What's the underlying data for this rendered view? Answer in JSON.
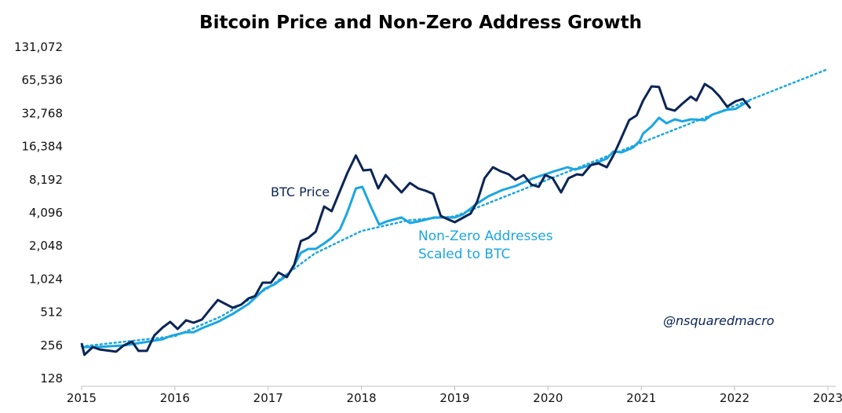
{
  "chart_data": {
    "type": "line",
    "title": "Bitcoin Price and Non-Zero Address Growth",
    "xlabel": "",
    "ylabel": "",
    "xlim": [
      2015,
      2023
    ],
    "ylim": [
      128,
      131072
    ],
    "yscale": "log2",
    "grid": false,
    "x_ticks": [
      "2015",
      "2016",
      "2017",
      "2018",
      "2019",
      "2020",
      "2021",
      "2022",
      "2023"
    ],
    "y_ticks": [
      "128",
      "256",
      "512",
      "1,024",
      "2,048",
      "4,096",
      "8,192",
      "16,384",
      "32,768",
      "65,536",
      "131,072"
    ],
    "y_tick_values": [
      128,
      256,
      512,
      1024,
      2048,
      4096,
      8192,
      16384,
      32768,
      65536,
      131072
    ],
    "colors": {
      "btc": "#0b2556",
      "nonzero": "#1ba6e2",
      "trend": "#1ba6e2",
      "axis": "#bfbfbf"
    },
    "series": [
      {
        "name": "BTC Price",
        "label": "BTC Price",
        "points": [
          [
            2015.0,
            268
          ],
          [
            2015.03,
            210
          ],
          [
            2015.12,
            247
          ],
          [
            2015.19,
            235
          ],
          [
            2015.37,
            224
          ],
          [
            2015.45,
            255
          ],
          [
            2015.54,
            277
          ],
          [
            2015.61,
            228
          ],
          [
            2015.7,
            228
          ],
          [
            2015.78,
            315
          ],
          [
            2015.87,
            372
          ],
          [
            2015.95,
            418
          ],
          [
            2016.03,
            360
          ],
          [
            2016.12,
            432
          ],
          [
            2016.2,
            411
          ],
          [
            2016.29,
            439
          ],
          [
            2016.37,
            534
          ],
          [
            2016.46,
            660
          ],
          [
            2016.54,
            609
          ],
          [
            2016.62,
            562
          ],
          [
            2016.71,
            599
          ],
          [
            2016.79,
            684
          ],
          [
            2016.86,
            718
          ],
          [
            2016.94,
            950
          ],
          [
            2017.03,
            950
          ],
          [
            2017.11,
            1175
          ],
          [
            2017.2,
            1065
          ],
          [
            2017.28,
            1386
          ],
          [
            2017.35,
            2267
          ],
          [
            2017.43,
            2423
          ],
          [
            2017.51,
            2761
          ],
          [
            2017.6,
            4673
          ],
          [
            2017.68,
            4232
          ],
          [
            2017.77,
            6492
          ],
          [
            2017.85,
            9470
          ],
          [
            2017.94,
            13590
          ],
          [
            2018.02,
            9945
          ],
          [
            2018.1,
            10100
          ],
          [
            2018.18,
            6816
          ],
          [
            2018.26,
            9011
          ],
          [
            2018.35,
            7398
          ],
          [
            2018.43,
            6279
          ],
          [
            2018.52,
            7643
          ],
          [
            2018.61,
            6816
          ],
          [
            2018.69,
            6492
          ],
          [
            2018.77,
            6075
          ],
          [
            2018.85,
            3836
          ],
          [
            2018.94,
            3535
          ],
          [
            2019.0,
            3365
          ],
          [
            2019.17,
            4029
          ],
          [
            2019.24,
            5157
          ],
          [
            2019.32,
            8440
          ],
          [
            2019.41,
            10620
          ],
          [
            2019.49,
            9780
          ],
          [
            2019.58,
            9160
          ],
          [
            2019.65,
            8165
          ],
          [
            2019.74,
            9011
          ],
          [
            2019.82,
            7398
          ],
          [
            2019.9,
            7045
          ],
          [
            2019.97,
            9011
          ],
          [
            2020.05,
            8440
          ],
          [
            2020.14,
            6279
          ],
          [
            2020.22,
            8440
          ],
          [
            2020.31,
            9160
          ],
          [
            2020.37,
            9011
          ],
          [
            2020.46,
            11145
          ],
          [
            2020.54,
            11520
          ],
          [
            2020.63,
            10620
          ],
          [
            2020.7,
            13590
          ],
          [
            2020.77,
            18250
          ],
          [
            2020.87,
            28460
          ],
          [
            2020.95,
            31400
          ],
          [
            2021.02,
            42900
          ],
          [
            2021.11,
            57670
          ],
          [
            2021.19,
            57000
          ],
          [
            2021.27,
            36400
          ],
          [
            2021.36,
            34700
          ],
          [
            2021.44,
            40170
          ],
          [
            2021.53,
            46560
          ],
          [
            2021.59,
            42900
          ],
          [
            2021.68,
            60560
          ],
          [
            2021.76,
            54880
          ],
          [
            2021.84,
            46560
          ],
          [
            2021.92,
            37650
          ],
          [
            2022.01,
            42200
          ],
          [
            2022.09,
            44300
          ],
          [
            2022.17,
            36400
          ]
        ]
      },
      {
        "name": "Non-Zero Addresses Scaled to BTC",
        "label_line1": "Non-Zero Addresses",
        "label_line2": "Scaled to BTC",
        "points": [
          [
            2015.0,
            247
          ],
          [
            2015.16,
            247
          ],
          [
            2015.45,
            255
          ],
          [
            2015.72,
            277
          ],
          [
            2015.87,
            291
          ],
          [
            2015.95,
            310
          ],
          [
            2016.12,
            337
          ],
          [
            2016.2,
            337
          ],
          [
            2016.29,
            366
          ],
          [
            2016.46,
            418
          ],
          [
            2016.62,
            494
          ],
          [
            2016.79,
            609
          ],
          [
            2016.88,
            718
          ],
          [
            2016.96,
            832
          ],
          [
            2017.07,
            919
          ],
          [
            2017.21,
            1119
          ],
          [
            2017.26,
            1276
          ],
          [
            2017.35,
            1772
          ],
          [
            2017.43,
            1924
          ],
          [
            2017.51,
            1924
          ],
          [
            2017.6,
            2159
          ],
          [
            2017.68,
            2423
          ],
          [
            2017.77,
            2900
          ],
          [
            2017.84,
            3965
          ],
          [
            2017.89,
            5157
          ],
          [
            2017.94,
            6816
          ],
          [
            2018.01,
            7045
          ],
          [
            2018.1,
            4673
          ],
          [
            2018.19,
            3203
          ],
          [
            2018.27,
            3418
          ],
          [
            2018.43,
            3713
          ],
          [
            2018.52,
            3310
          ],
          [
            2018.61,
            3418
          ],
          [
            2018.78,
            3713
          ],
          [
            2019.0,
            3713
          ],
          [
            2019.09,
            3965
          ],
          [
            2019.23,
            4911
          ],
          [
            2019.36,
            5784
          ],
          [
            2019.51,
            6595
          ],
          [
            2019.65,
            7164
          ],
          [
            2019.84,
            8440
          ],
          [
            2020.07,
            9780
          ],
          [
            2020.21,
            10620
          ],
          [
            2020.29,
            10100
          ],
          [
            2020.46,
            11145
          ],
          [
            2020.63,
            12720
          ],
          [
            2020.7,
            14750
          ],
          [
            2020.79,
            14500
          ],
          [
            2020.91,
            16010
          ],
          [
            2020.98,
            18250
          ],
          [
            2021.02,
            21520
          ],
          [
            2021.11,
            24960
          ],
          [
            2021.19,
            29880
          ],
          [
            2021.27,
            26640
          ],
          [
            2021.36,
            28930
          ],
          [
            2021.44,
            27700
          ],
          [
            2021.53,
            28930
          ],
          [
            2021.68,
            28460
          ],
          [
            2021.76,
            31900
          ],
          [
            2021.92,
            35400
          ],
          [
            2022.01,
            35900
          ],
          [
            2022.09,
            39500
          ],
          [
            2022.16,
            42900
          ]
        ]
      },
      {
        "name": "Trend",
        "style": "dotted",
        "points": [
          [
            2015.0,
            250
          ],
          [
            2016.0,
            310
          ],
          [
            2016.5,
            470
          ],
          [
            2017.0,
            850
          ],
          [
            2017.5,
            1750
          ],
          [
            2018.0,
            2800
          ],
          [
            2018.5,
            3500
          ],
          [
            2019.0,
            3800
          ],
          [
            2023.0,
            82800
          ]
        ]
      }
    ],
    "annotations": {
      "watermark": "@nsquaredmacro"
    }
  }
}
